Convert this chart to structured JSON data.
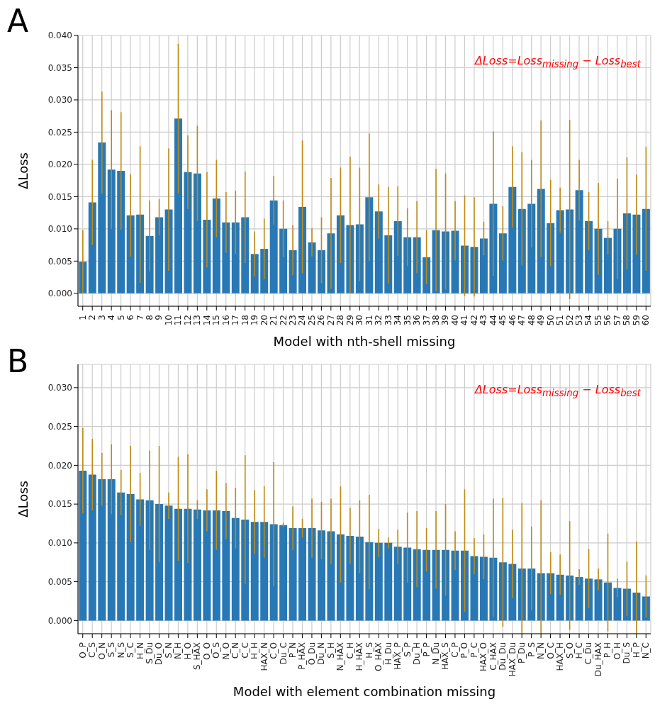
{
  "chart_data": [
    {
      "type": "bar",
      "title": "A",
      "xlabel": "Model with nth-shell missing",
      "ylabel": "ΔLoss",
      "annotations": [
        "ΔLoss=Loss$_{missing}$ − Loss$_{best}$"
      ],
      "categories": [
        "1",
        "2",
        "3",
        "4",
        "5",
        "6",
        "7",
        "8",
        "9",
        "10",
        "11",
        "12",
        "13",
        "14",
        "15",
        "16",
        "17",
        "18",
        "19",
        "20",
        "21",
        "22",
        "23",
        "24",
        "25",
        "26",
        "27",
        "28",
        "29",
        "30",
        "31",
        "32",
        "33",
        "34",
        "35",
        "36",
        "37",
        "38",
        "39",
        "40",
        "41",
        "42",
        "43",
        "44",
        "45",
        "46",
        "47",
        "48",
        "49",
        "50",
        "51",
        "52",
        "53",
        "54",
        "55",
        "56",
        "57",
        "58",
        "59",
        "60"
      ],
      "values": [
        0.0049,
        0.0141,
        0.0234,
        0.0192,
        0.019,
        0.0121,
        0.0122,
        0.0089,
        0.0118,
        0.013,
        0.0271,
        0.0188,
        0.0186,
        0.0114,
        0.0147,
        0.011,
        0.011,
        0.0118,
        0.0061,
        0.0069,
        0.0144,
        0.01,
        0.0067,
        0.0134,
        0.0079,
        0.0067,
        0.0093,
        0.0121,
        0.0106,
        0.0107,
        0.0149,
        0.0127,
        0.009,
        0.0112,
        0.0087,
        0.0087,
        0.0056,
        0.0098,
        0.0096,
        0.0097,
        0.0074,
        0.0072,
        0.0085,
        0.0139,
        0.0093,
        0.0165,
        0.0131,
        0.0139,
        0.0162,
        0.0109,
        0.0129,
        0.013,
        0.016,
        0.0112,
        0.01,
        0.0086,
        0.01,
        0.0124,
        0.0122,
        0.0131
      ],
      "errors": [
        0.0049,
        0.0066,
        0.0079,
        0.0092,
        0.0091,
        0.0064,
        0.0106,
        0.0055,
        0.0028,
        0.0095,
        0.0116,
        0.0057,
        0.0074,
        0.0074,
        0.006,
        0.0047,
        0.0049,
        0.0071,
        0.0035,
        0.0047,
        0.0038,
        0.0044,
        0.0039,
        0.0103,
        0.0022,
        0.0051,
        0.0086,
        0.0074,
        0.0106,
        0.0088,
        0.0099,
        0.0042,
        0.0075,
        0.0054,
        0.0045,
        0.0056,
        0.0042,
        0.0095,
        0.009,
        0.0046,
        0.0078,
        0.0077,
        0.0026,
        0.0112,
        0.0042,
        0.0063,
        0.0088,
        0.0068,
        0.0106,
        0.0067,
        0.0035,
        0.0139,
        0.0047,
        0.0045,
        0.0071,
        0.0026,
        0.0078,
        0.0087,
        0.0062,
        0.0096
      ],
      "color": "#2878b5",
      "ylim": [
        -0.002,
        0.04
      ],
      "yticks": [
        {
          "value": 0,
          "label": "0.000"
        },
        {
          "value": 0.005,
          "label": "0.005"
        },
        {
          "value": 0.01,
          "label": "0.010"
        },
        {
          "value": 0.015,
          "label": "0.015"
        },
        {
          "value": 0.02,
          "label": "0.020"
        },
        {
          "value": 0.025,
          "label": "0.025"
        },
        {
          "value": 0.03,
          "label": "0.030"
        },
        {
          "value": 0.035,
          "label": "0.035"
        },
        {
          "value": 0.04,
          "label": "0.040"
        }
      ],
      "grid": true
    },
    {
      "type": "bar",
      "title": "B",
      "xlabel": "Model with element combination missing",
      "ylabel": "ΔLoss",
      "annotations": [
        "ΔLoss=Loss$_{missing}$ − Loss$_{best}$"
      ],
      "categories": [
        "O_P",
        "C_S",
        "O_N",
        "S_S",
        "N_S",
        "S_C",
        "H_N",
        "S_Du",
        "Du_O",
        "S_N",
        "N_H",
        "H_O",
        "S_HAX",
        "O_O",
        "O_S",
        "N_O",
        "C_N",
        "C_C",
        "H_H",
        "HAX_N",
        "C_O",
        "Du_C",
        "P_N",
        "P_HAX",
        "O_Du",
        "Du_N",
        "S_H",
        "N_HAX",
        "C_H",
        "H_HAX",
        "H_S",
        "O_HAX",
        "H_Du",
        "HAX_P",
        "S_P",
        "Du_H",
        "P_P",
        "N_Du",
        "HAX_S",
        "C_P",
        "P_O",
        "P_C",
        "HAX_O",
        "C_HAX",
        "Du_Du",
        "HAX_Du",
        "P_Du",
        "P_S",
        "N_N",
        "O_C",
        "HAX_H",
        "S_O",
        "H_C",
        "C_Du",
        "Du_HAX",
        "P_H",
        "O_H",
        "Du_S",
        "H_P",
        "N_C"
      ],
      "values": [
        0.0193,
        0.0188,
        0.0182,
        0.0182,
        0.0165,
        0.0163,
        0.0156,
        0.0155,
        0.015,
        0.0148,
        0.0144,
        0.0144,
        0.0143,
        0.0142,
        0.0142,
        0.0141,
        0.0132,
        0.013,
        0.0127,
        0.0127,
        0.0124,
        0.0123,
        0.0119,
        0.0119,
        0.0119,
        0.0116,
        0.0115,
        0.0111,
        0.0109,
        0.0108,
        0.0101,
        0.01,
        0.01,
        0.0095,
        0.0094,
        0.0092,
        0.0091,
        0.0091,
        0.0091,
        0.009,
        0.009,
        0.0083,
        0.0082,
        0.0081,
        0.0075,
        0.0073,
        0.0067,
        0.0067,
        0.0061,
        0.0061,
        0.0059,
        0.0058,
        0.0056,
        0.0054,
        0.0053,
        0.0049,
        0.0042,
        0.0041,
        0.0036,
        0.0031
      ],
      "errors": [
        0.0055,
        0.0046,
        0.0034,
        0.0045,
        0.0029,
        0.0062,
        0.0034,
        0.0064,
        0.0075,
        0.0017,
        0.0067,
        0.007,
        0.0012,
        0.0027,
        0.0051,
        0.0036,
        0.0039,
        0.0083,
        0.0041,
        0.0046,
        0.008,
        0.0003,
        0.0028,
        0.0012,
        0.0038,
        0.0037,
        0.0042,
        0.0062,
        0.0036,
        0.0047,
        0.0061,
        0.0018,
        0.0007,
        0.0022,
        0.0045,
        0.0049,
        0.0028,
        0.005,
        0.0059,
        0.0025,
        0.0079,
        0.0023,
        0.0029,
        0.0076,
        0.0083,
        0.0044,
        0.0084,
        0.0054,
        [
          -0.0017,
          0.0155
        ],
        0.0027,
        0.0026,
        0.007,
        0.001,
        0.0038,
        0.0014,
        0.0063,
        0.0012,
        0.0035,
        [
          -0.0017,
          0.0102
        ],
        0.0027
      ],
      "color": "#2878b5",
      "ylim": [
        -0.0017,
        0.033
      ],
      "yticks": [
        {
          "value": 0,
          "label": "0.000"
        },
        {
          "value": 0.005,
          "label": "0.005"
        },
        {
          "value": 0.01,
          "label": "0.010"
        },
        {
          "value": 0.015,
          "label": "0.015"
        },
        {
          "value": 0.02,
          "label": "0.020"
        },
        {
          "value": 0.025,
          "label": "0.025"
        },
        {
          "value": 0.03,
          "label": "0.030"
        }
      ],
      "grid": true
    }
  ]
}
